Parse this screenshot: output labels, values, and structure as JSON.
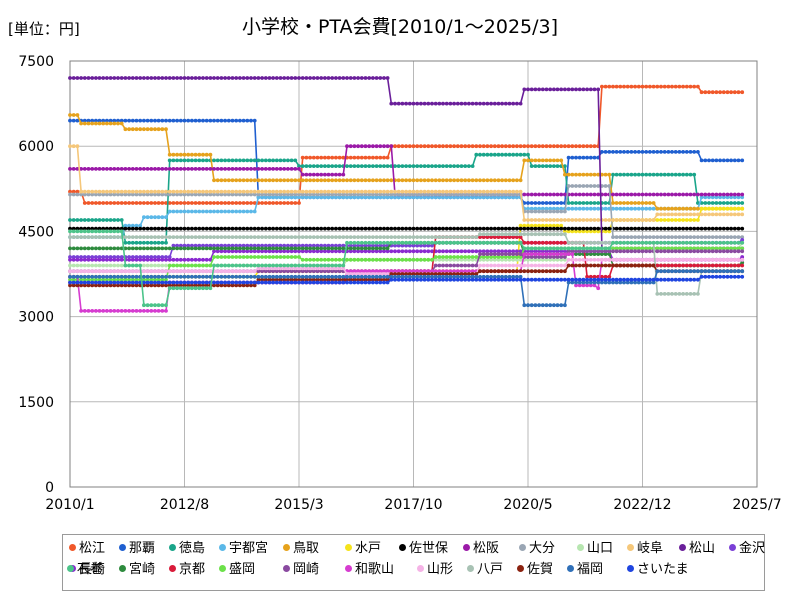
{
  "chart_data": {
    "type": "line",
    "title": "小学校・PTA会費[2010/1～2025/3]",
    "unit_label": "[単位：円]",
    "ylim": [
      0,
      7500
    ],
    "y_ticks": [
      "0",
      "1500",
      "3000",
      "4500",
      "6000",
      "7500"
    ],
    "x_ticks": [
      "2010/1",
      "2012/8",
      "2015/3",
      "2017/10",
      "2020/5",
      "2022/12",
      "2025/7"
    ],
    "x_range": [
      "2010/1",
      "2025/7"
    ],
    "grid": true,
    "legend_position": "bottom",
    "series": [
      {
        "name": "松江",
        "color": "#f0582a",
        "points": [
          [
            "2010/1",
            5200
          ],
          [
            "2010/5",
            5000
          ],
          [
            "2015/3",
            5000
          ],
          [
            "2015/4",
            5800
          ],
          [
            "2017/3",
            5800
          ],
          [
            "2017/4",
            6000
          ],
          [
            "2021/12",
            6000
          ],
          [
            "2022/1",
            7050
          ],
          [
            "2024/3",
            7050
          ],
          [
            "2024/4",
            6950
          ],
          [
            "2025/3",
            6950
          ]
        ]
      },
      {
        "name": "那覇",
        "color": "#1f5fd0",
        "points": [
          [
            "2010/1",
            6450
          ],
          [
            "2014/3",
            6450
          ],
          [
            "2014/4",
            5100
          ],
          [
            "2019/3",
            5100
          ],
          [
            "2020/4",
            5000
          ],
          [
            "2021/4",
            5800
          ],
          [
            "2022/1",
            5900
          ],
          [
            "2024/3",
            5900
          ],
          [
            "2024/4",
            5750
          ],
          [
            "2025/3",
            5750
          ]
        ]
      },
      {
        "name": "徳島",
        "color": "#1aa58a",
        "points": [
          [
            "2010/1",
            4700
          ],
          [
            "2011/3",
            4700
          ],
          [
            "2011/4",
            4300
          ],
          [
            "2012/3",
            4300
          ],
          [
            "2012/4",
            5750
          ],
          [
            "2015/3",
            5650
          ],
          [
            "2016/4",
            5650
          ],
          [
            "2019/3",
            5850
          ],
          [
            "2020/6",
            5650
          ],
          [
            "2021/4",
            5000
          ],
          [
            "2022/4",
            5500
          ],
          [
            "2024/3",
            5000
          ],
          [
            "2025/3",
            5000
          ]
        ]
      },
      {
        "name": "宇都宮",
        "color": "#5bb8e8",
        "points": [
          [
            "2010/1",
            4400
          ],
          [
            "2011/4",
            4600
          ],
          [
            "2011/9",
            4750
          ],
          [
            "2012/4",
            4850
          ],
          [
            "2014/3",
            4850
          ],
          [
            "2014/4",
            5100
          ],
          [
            "2019/3",
            5100
          ],
          [
            "2020/4",
            4900
          ],
          [
            "2022/4",
            4900
          ],
          [
            "2024/4",
            5100
          ],
          [
            "2025/3",
            5100
          ]
        ]
      },
      {
        "name": "鳥取",
        "color": "#e6a21c",
        "points": [
          [
            "2010/1",
            6550
          ],
          [
            "2010/4",
            6400
          ],
          [
            "2011/3",
            6400
          ],
          [
            "2011/4",
            6300
          ],
          [
            "2012/4",
            5850
          ],
          [
            "2013/4",
            5400
          ],
          [
            "2019/3",
            5400
          ],
          [
            "2020/4",
            5750
          ],
          [
            "2021/3",
            5500
          ],
          [
            "2022/4",
            5000
          ],
          [
            "2023/4",
            4900
          ],
          [
            "2025/3",
            4900
          ]
        ]
      },
      {
        "name": "水戸",
        "color": "#f5e31b",
        "points": [
          [
            "2010/1",
            3700
          ],
          [
            "2014/3",
            3700
          ],
          [
            "2014/4",
            3800
          ],
          [
            "2020/3",
            4600
          ],
          [
            "2021/3",
            4500
          ],
          [
            "2022/4",
            4700
          ],
          [
            "2024/4",
            4900
          ],
          [
            "2025/3",
            4900
          ]
        ]
      },
      {
        "name": "佐世保",
        "color": "#000000",
        "points": [
          [
            "2010/1",
            4550
          ],
          [
            "2025/3",
            4550
          ]
        ]
      },
      {
        "name": "松阪",
        "color": "#9b1aa8",
        "points": [
          [
            "2010/1",
            5600
          ],
          [
            "2015/4",
            5500
          ],
          [
            "2016/4",
            6000
          ],
          [
            "2017/4",
            6000
          ],
          [
            "2017/5",
            5150
          ],
          [
            "2025/3",
            5150
          ]
        ]
      },
      {
        "name": "大分",
        "color": "#9aa6b4",
        "points": [
          [
            "2010/1",
            5150
          ],
          [
            "2019/3",
            5150
          ],
          [
            "2020/4",
            4850
          ],
          [
            "2021/4",
            5300
          ],
          [
            "2022/4",
            4400
          ],
          [
            "2025/3",
            4400
          ]
        ]
      },
      {
        "name": "山口",
        "color": "#b7e6b0",
        "points": [
          [
            "2010/1",
            3900
          ],
          [
            "2016/4",
            4000
          ],
          [
            "2020/4",
            4000
          ],
          [
            "2021/4",
            4200
          ],
          [
            "2025/3",
            4300
          ]
        ]
      },
      {
        "name": "岐阜",
        "color": "#f5c77a",
        "points": [
          [
            "2010/1",
            6000
          ],
          [
            "2010/4",
            5200
          ],
          [
            "2016/3",
            5200
          ],
          [
            "2020/4",
            4700
          ],
          [
            "2023/4",
            4800
          ],
          [
            "2025/3",
            4800
          ]
        ]
      },
      {
        "name": "松山",
        "color": "#6a1f9a",
        "points": [
          [
            "2010/1",
            7200
          ],
          [
            "2017/3",
            7200
          ],
          [
            "2017/4",
            6750
          ],
          [
            "2020/3",
            6750
          ],
          [
            "2020/4",
            7000
          ],
          [
            "2021/12",
            7000
          ],
          [
            "2022/1",
            4200
          ],
          [
            "2025/3",
            4200
          ]
        ]
      },
      {
        "name": "金沢",
        "color": "#7a40d6",
        "points": [
          [
            "2010/1",
            4050
          ],
          [
            "2012/4",
            4050
          ],
          [
            "2012/5",
            4250
          ],
          [
            "2018/3",
            4250
          ],
          [
            "2018/4",
            4300
          ],
          [
            "2025/3",
            4350
          ]
        ]
      },
      {
        "name": "長崎",
        "color": "#8a2ad0",
        "points": [
          [
            "2010/1",
            4000
          ],
          [
            "2013/4",
            4150
          ],
          [
            "2019/4",
            4150
          ],
          [
            "2020/4",
            4150
          ],
          [
            "2022/4",
            4000
          ],
          [
            "2025/3",
            4050
          ]
        ]
      },
      {
        "name": "宮崎",
        "color": "#2e8b3e",
        "points": [
          [
            "2010/1",
            4200
          ],
          [
            "2016/4",
            4200
          ],
          [
            "2017/4",
            4300
          ],
          [
            "2020/4",
            4100
          ],
          [
            "2022/4",
            3900
          ],
          [
            "2025/3",
            3950
          ]
        ]
      },
      {
        "name": "京都",
        "color": "#d91b3a",
        "points": [
          [
            "2010/1",
            3600
          ],
          [
            "2016/4",
            3650
          ],
          [
            "2017/4",
            3800
          ],
          [
            "2018/4",
            4400
          ],
          [
            "2020/4",
            4300
          ],
          [
            "2021/9",
            3700
          ],
          [
            "2022/4",
            3900
          ],
          [
            "2025/3",
            3900
          ]
        ]
      },
      {
        "name": "盛岡",
        "color": "#6ce14a",
        "points": [
          [
            "2010/1",
            3650
          ],
          [
            "2012/4",
            3900
          ],
          [
            "2013/4",
            4050
          ],
          [
            "2015/4",
            4000
          ],
          [
            "2018/4",
            4050
          ],
          [
            "2020/4",
            4200
          ],
          [
            "2025/3",
            4200
          ]
        ]
      },
      {
        "name": "岡崎",
        "color": "#8a4aa0",
        "points": [
          [
            "2010/1",
            3800
          ],
          [
            "2013/4",
            3800
          ],
          [
            "2017/4",
            3800
          ],
          [
            "2018/4",
            3900
          ],
          [
            "2019/4",
            4100
          ],
          [
            "2020/4",
            4050
          ],
          [
            "2021/4",
            4150
          ],
          [
            "2025/3",
            4150
          ]
        ]
      },
      {
        "name": "和歌山",
        "color": "#d63cd0",
        "points": [
          [
            "2010/1",
            3700
          ],
          [
            "2010/4",
            3100
          ],
          [
            "2012/3",
            3100
          ],
          [
            "2012/4",
            3600
          ],
          [
            "2016/4",
            3800
          ],
          [
            "2019/4",
            3800
          ],
          [
            "2020/4",
            4100
          ],
          [
            "2021/6",
            3550
          ],
          [
            "2021/12",
            3500
          ],
          [
            "2022/1",
            4000
          ],
          [
            "2025/3",
            4000
          ]
        ]
      },
      {
        "name": "山形",
        "color": "#f5b3e6",
        "points": [
          [
            "2010/1",
            3800
          ],
          [
            "2014/4",
            3850
          ],
          [
            "2016/4",
            3750
          ],
          [
            "2019/4",
            3900
          ],
          [
            "2021/4",
            4000
          ],
          [
            "2025/3",
            4000
          ]
        ]
      },
      {
        "name": "八戸",
        "color": "#a8c2b4",
        "points": [
          [
            "2010/1",
            4400
          ],
          [
            "2015/4",
            4400
          ],
          [
            "2019/4",
            4450
          ],
          [
            "2021/4",
            4300
          ],
          [
            "2023/4",
            3400
          ],
          [
            "2024/4",
            3800
          ],
          [
            "2025/3",
            3800
          ]
        ]
      },
      {
        "name": "佐賀",
        "color": "#8b2210",
        "points": [
          [
            "2010/1",
            3550
          ],
          [
            "2014/4",
            3650
          ],
          [
            "2017/4",
            3750
          ],
          [
            "2019/4",
            3800
          ],
          [
            "2021/4",
            3900
          ],
          [
            "2023/4",
            3800
          ],
          [
            "2025/3",
            3800
          ]
        ]
      },
      {
        "name": "福岡",
        "color": "#2f70b8",
        "points": [
          [
            "2010/1",
            3700
          ],
          [
            "2016/4",
            3700
          ],
          [
            "2020/3",
            3700
          ],
          [
            "2020/4",
            3200
          ],
          [
            "2021/3",
            3200
          ],
          [
            "2021/4",
            3600
          ],
          [
            "2023/4",
            3800
          ],
          [
            "2025/3",
            3800
          ]
        ]
      },
      {
        "name": "さいたま",
        "color": "#1f45e0",
        "points": [
          [
            "2010/1",
            3600
          ],
          [
            "2017/4",
            3650
          ],
          [
            "2021/4",
            3650
          ],
          [
            "2022/4",
            3650
          ],
          [
            "2024/4",
            3700
          ],
          [
            "2025/3",
            3700
          ]
        ]
      },
      {
        "name": "石巻",
        "color": "#4cc48a",
        "points": [
          [
            "2010/1",
            4500
          ],
          [
            "2011/3",
            4500
          ],
          [
            "2011/4",
            3900
          ],
          [
            "2011/9",
            3200
          ],
          [
            "2012/3",
            3200
          ],
          [
            "2012/4",
            3500
          ],
          [
            "2013/3",
            3500
          ],
          [
            "2013/4",
            3900
          ],
          [
            "2016/4",
            4300
          ],
          [
            "2020/4",
            4200
          ],
          [
            "2022/4",
            4300
          ],
          [
            "2025/3",
            4300
          ]
        ]
      }
    ]
  }
}
